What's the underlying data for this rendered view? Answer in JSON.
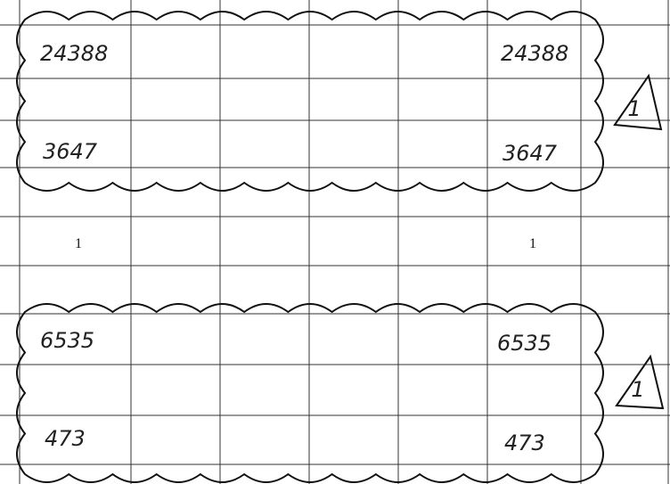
{
  "rows": [
    [
      "24388",
      "24388"
    ],
    [
      "3647",
      "3647"
    ],
    [
      "1",
      "1"
    ],
    [
      "6535",
      "6535"
    ],
    [
      "473",
      "473"
    ]
  ],
  "revision_marks": [
    "1",
    "1"
  ]
}
